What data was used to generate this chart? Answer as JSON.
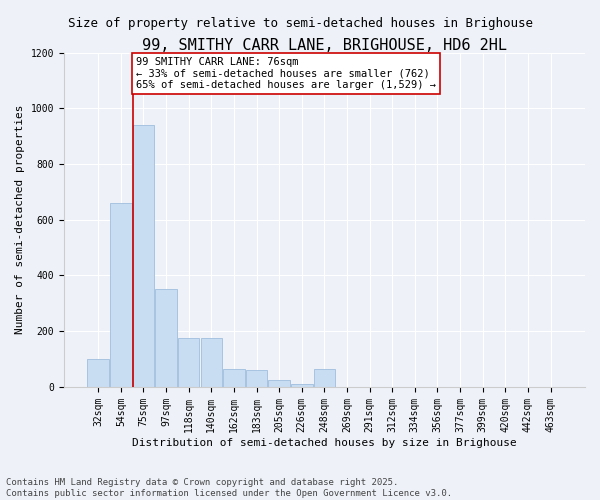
{
  "title": "99, SMITHY CARR LANE, BRIGHOUSE, HD6 2HL",
  "subtitle": "Size of property relative to semi-detached houses in Brighouse",
  "xlabel": "Distribution of semi-detached houses by size in Brighouse",
  "ylabel": "Number of semi-detached properties",
  "categories": [
    "32sqm",
    "54sqm",
    "75sqm",
    "97sqm",
    "118sqm",
    "140sqm",
    "162sqm",
    "183sqm",
    "205sqm",
    "226sqm",
    "248sqm",
    "269sqm",
    "291sqm",
    "312sqm",
    "334sqm",
    "356sqm",
    "377sqm",
    "399sqm",
    "420sqm",
    "442sqm",
    "463sqm"
  ],
  "values": [
    100,
    660,
    940,
    350,
    175,
    175,
    65,
    60,
    25,
    10,
    65,
    0,
    0,
    0,
    0,
    0,
    0,
    0,
    0,
    0,
    0
  ],
  "bar_color": "#c9ddf2",
  "bar_edge_color": "#a0bedd",
  "property_line_bin": 2,
  "annotation_line1": "99 SMITHY CARR LANE: 76sqm",
  "annotation_line2": "← 33% of semi-detached houses are smaller (762)",
  "annotation_line3": "65% of semi-detached houses are larger (1,529) →",
  "annotation_box_color": "#ffffff",
  "annotation_box_edge_color": "#cc0000",
  "line_color": "#cc0000",
  "ylim": [
    0,
    1200
  ],
  "yticks": [
    0,
    200,
    400,
    600,
    800,
    1000,
    1200
  ],
  "footer_line1": "Contains HM Land Registry data © Crown copyright and database right 2025.",
  "footer_line2": "Contains public sector information licensed under the Open Government Licence v3.0.",
  "background_color": "#eef2f8",
  "plot_background": "#eef2f8",
  "title_fontsize": 11,
  "subtitle_fontsize": 9,
  "ylabel_fontsize": 8,
  "xlabel_fontsize": 8,
  "tick_fontsize": 7,
  "annotation_fontsize": 7.5,
  "footer_fontsize": 6.5
}
